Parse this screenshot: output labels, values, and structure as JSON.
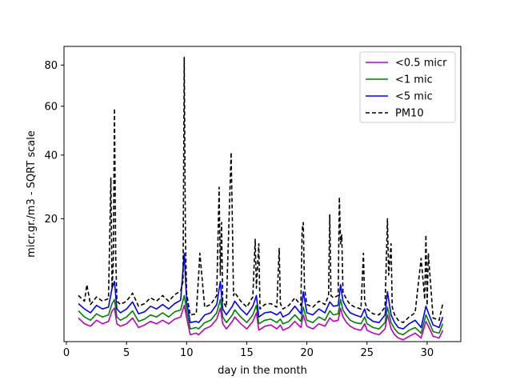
{
  "chart_data": {
    "type": "line",
    "xlabel": "day in the month",
    "ylabel": "micr.gr./m3 - SQRT scale",
    "xlim": [
      -0.2,
      32.8
    ],
    "ylim": [
      0.8,
      90
    ],
    "y_scale": "sqrt",
    "x_ticks": [
      0,
      5,
      10,
      15,
      20,
      25,
      30
    ],
    "y_ticks": [
      20,
      40,
      60,
      80
    ],
    "grid": false,
    "legend_position": "top-right",
    "series": [
      {
        "name": "<0.5 micr",
        "color": "#bf00bf",
        "dash": "solid",
        "x": [
          1.0,
          1.5,
          2.0,
          2.5,
          3.0,
          3.5,
          3.8,
          4.0,
          4.2,
          4.5,
          5.0,
          5.5,
          6.0,
          6.5,
          7.0,
          7.5,
          8.0,
          8.5,
          9.0,
          9.5,
          9.8,
          10.0,
          10.3,
          10.8,
          11.0,
          11.5,
          12.0,
          12.5,
          12.8,
          13.0,
          13.3,
          13.8,
          14.0,
          14.5,
          15.0,
          15.5,
          15.8,
          16.0,
          16.5,
          17.0,
          17.5,
          17.8,
          18.0,
          18.5,
          19.0,
          19.5,
          19.7,
          20.0,
          20.5,
          21.0,
          21.5,
          21.9,
          22.2,
          22.6,
          22.8,
          23.0,
          23.3,
          23.6,
          24.0,
          24.5,
          24.8,
          25.0,
          25.5,
          26.0,
          26.5,
          26.7,
          27.0,
          27.3,
          27.6,
          28.0,
          28.5,
          29.0,
          29.5,
          29.9,
          30.1,
          30.5,
          31.0,
          31.3
        ],
        "y": [
          2.5,
          2.0,
          1.8,
          2.3,
          2.0,
          2.2,
          3.2,
          3.5,
          2.0,
          1.8,
          2.0,
          2.5,
          1.7,
          1.9,
          2.2,
          2.0,
          2.3,
          2.0,
          2.4,
          2.6,
          3.8,
          2.5,
          1.2,
          1.3,
          1.2,
          1.6,
          1.8,
          2.4,
          3.5,
          2.0,
          1.6,
          2.2,
          2.6,
          2.0,
          1.6,
          2.2,
          3.0,
          1.5,
          1.8,
          1.9,
          1.6,
          1.9,
          1.5,
          1.7,
          2.2,
          1.7,
          2.8,
          1.8,
          1.6,
          2.0,
          1.8,
          2.5,
          2.2,
          2.3,
          3.5,
          2.6,
          2.1,
          1.8,
          1.6,
          1.5,
          2.0,
          1.5,
          1.3,
          1.2,
          1.6,
          2.8,
          1.6,
          1.2,
          1.0,
          0.9,
          1.1,
          1.3,
          1.0,
          2.2,
          1.8,
          1.1,
          1.0,
          1.5
        ]
      },
      {
        "name": "<1 mic",
        "color": "#008000",
        "dash": "solid",
        "x": [
          1.0,
          1.5,
          2.0,
          2.5,
          3.0,
          3.5,
          3.8,
          4.0,
          4.2,
          4.5,
          5.0,
          5.5,
          6.0,
          6.5,
          7.0,
          7.5,
          8.0,
          8.5,
          9.0,
          9.5,
          9.8,
          10.0,
          10.3,
          10.8,
          11.0,
          11.5,
          12.0,
          12.5,
          12.8,
          13.0,
          13.3,
          13.8,
          14.0,
          14.5,
          15.0,
          15.5,
          15.8,
          16.0,
          16.5,
          17.0,
          17.5,
          17.8,
          18.0,
          18.5,
          19.0,
          19.5,
          19.7,
          20.0,
          20.5,
          21.0,
          21.5,
          21.9,
          22.2,
          22.6,
          22.8,
          23.0,
          23.3,
          23.6,
          24.0,
          24.5,
          24.8,
          25.0,
          25.5,
          26.0,
          26.5,
          26.7,
          27.0,
          27.3,
          27.6,
          28.0,
          28.5,
          29.0,
          29.5,
          29.9,
          30.1,
          30.5,
          31.0,
          31.3
        ],
        "y": [
          3.2,
          2.6,
          2.3,
          2.9,
          2.6,
          2.8,
          4.0,
          4.5,
          2.6,
          2.3,
          2.6,
          3.2,
          2.2,
          2.4,
          2.8,
          2.6,
          3.0,
          2.6,
          3.1,
          3.3,
          5.0,
          3.2,
          1.6,
          1.7,
          1.6,
          2.1,
          2.3,
          3.0,
          4.5,
          2.6,
          2.1,
          2.8,
          3.3,
          2.6,
          2.1,
          2.8,
          3.8,
          2.0,
          2.3,
          2.4,
          2.1,
          2.4,
          2.0,
          2.2,
          2.8,
          2.2,
          3.6,
          2.3,
          2.1,
          2.6,
          2.3,
          3.2,
          2.8,
          2.9,
          4.5,
          3.3,
          2.7,
          2.3,
          2.1,
          2.0,
          2.6,
          2.0,
          1.7,
          1.6,
          2.1,
          3.6,
          2.1,
          1.6,
          1.3,
          1.2,
          1.5,
          1.7,
          1.3,
          2.8,
          2.3,
          1.4,
          1.3,
          2.0
        ]
      },
      {
        "name": "<5 mic",
        "color": "#0000ff",
        "dash": "solid",
        "x": [
          1.0,
          1.5,
          2.0,
          2.5,
          3.0,
          3.5,
          3.8,
          4.0,
          4.2,
          4.5,
          5.0,
          5.5,
          6.0,
          6.5,
          7.0,
          7.5,
          8.0,
          8.5,
          9.0,
          9.5,
          9.8,
          10.0,
          10.3,
          10.8,
          11.0,
          11.5,
          12.0,
          12.5,
          12.8,
          13.0,
          13.3,
          13.8,
          14.0,
          14.5,
          15.0,
          15.5,
          15.8,
          16.0,
          16.5,
          17.0,
          17.5,
          17.8,
          18.0,
          18.5,
          19.0,
          19.5,
          19.7,
          20.0,
          20.5,
          21.0,
          21.5,
          21.9,
          22.2,
          22.6,
          22.8,
          23.0,
          23.3,
          23.6,
          24.0,
          24.5,
          24.8,
          25.0,
          25.5,
          26.0,
          26.5,
          26.7,
          27.0,
          27.3,
          27.6,
          28.0,
          28.5,
          29.0,
          29.5,
          29.9,
          30.1,
          30.5,
          31.0,
          31.3
        ],
        "y": [
          4.0,
          3.4,
          3.0,
          3.8,
          3.4,
          3.6,
          6.0,
          7.0,
          3.4,
          3.0,
          3.4,
          4.2,
          2.9,
          3.1,
          3.7,
          3.4,
          3.9,
          3.4,
          4.0,
          4.4,
          12.0,
          4.2,
          2.1,
          2.2,
          2.1,
          2.8,
          3.0,
          3.9,
          7.0,
          3.4,
          2.8,
          3.7,
          4.3,
          3.4,
          2.8,
          3.7,
          5.0,
          2.6,
          3.0,
          3.1,
          2.8,
          3.1,
          2.6,
          2.9,
          3.7,
          2.9,
          5.5,
          3.0,
          2.8,
          3.4,
          3.0,
          4.2,
          3.7,
          3.8,
          6.5,
          4.3,
          3.5,
          3.0,
          2.8,
          2.6,
          3.4,
          2.6,
          2.2,
          2.1,
          2.8,
          5.5,
          2.8,
          2.1,
          1.7,
          1.6,
          2.0,
          2.3,
          1.7,
          3.7,
          3.0,
          1.9,
          1.7,
          2.6
        ]
      },
      {
        "name": "PM10",
        "color": "#000000",
        "dash": "dashed",
        "x": [
          1.0,
          1.5,
          1.7,
          2.0,
          2.5,
          3.0,
          3.5,
          3.7,
          3.8,
          3.9,
          4.0,
          4.1,
          4.2,
          4.5,
          5.0,
          5.5,
          6.0,
          6.5,
          7.0,
          7.5,
          8.0,
          8.5,
          9.0,
          9.5,
          9.7,
          9.8,
          9.9,
          10.0,
          10.3,
          10.8,
          11.0,
          11.1,
          11.5,
          12.0,
          12.5,
          12.7,
          12.8,
          12.9,
          13.0,
          13.3,
          13.7,
          13.8,
          13.9,
          14.0,
          14.5,
          15.0,
          15.5,
          15.7,
          15.8,
          16.0,
          16.1,
          16.5,
          17.0,
          17.5,
          17.7,
          17.8,
          18.0,
          18.5,
          19.0,
          19.5,
          19.6,
          19.7,
          19.8,
          20.0,
          20.5,
          21.0,
          21.5,
          21.8,
          21.9,
          22.0,
          22.2,
          22.6,
          22.7,
          22.8,
          22.9,
          23.0,
          23.3,
          23.6,
          24.0,
          24.5,
          24.7,
          24.8,
          25.0,
          25.5,
          26.0,
          26.5,
          26.7,
          26.8,
          27.0,
          27.1,
          27.3,
          27.6,
          28.0,
          28.5,
          29.0,
          29.5,
          29.8,
          29.9,
          30.0,
          30.1,
          30.5,
          31.0,
          31.3
        ],
        "y": [
          5.0,
          4.3,
          6.5,
          3.9,
          4.8,
          4.3,
          4.6,
          32.0,
          6.0,
          10.0,
          59.0,
          12.0,
          4.3,
          3.9,
          4.3,
          5.3,
          3.7,
          4.0,
          4.7,
          4.3,
          5.0,
          4.3,
          5.1,
          5.6,
          7.0,
          84.0,
          15.0,
          5.3,
          2.8,
          2.9,
          8.0,
          12.0,
          3.6,
          3.9,
          5.0,
          29.0,
          8.0,
          19.0,
          4.3,
          3.6,
          41.0,
          20.0,
          5.0,
          5.4,
          4.3,
          3.6,
          4.8,
          15.0,
          6.0,
          14.0,
          3.4,
          3.9,
          4.0,
          3.6,
          13.0,
          4.0,
          3.4,
          3.8,
          4.7,
          3.8,
          17.0,
          19.0,
          6.0,
          3.9,
          3.6,
          4.3,
          3.9,
          5.0,
          21.0,
          5.0,
          4.7,
          5.0,
          26.0,
          14.0,
          16.0,
          5.5,
          4.5,
          3.9,
          3.6,
          3.4,
          12.0,
          4.3,
          3.4,
          2.9,
          2.8,
          3.6,
          20.0,
          8.0,
          14.0,
          3.6,
          2.8,
          2.3,
          2.1,
          2.6,
          3.0,
          11.0,
          4.5,
          16.0,
          3.8,
          12.0,
          2.5,
          2.3,
          4.0
        ]
      }
    ]
  }
}
